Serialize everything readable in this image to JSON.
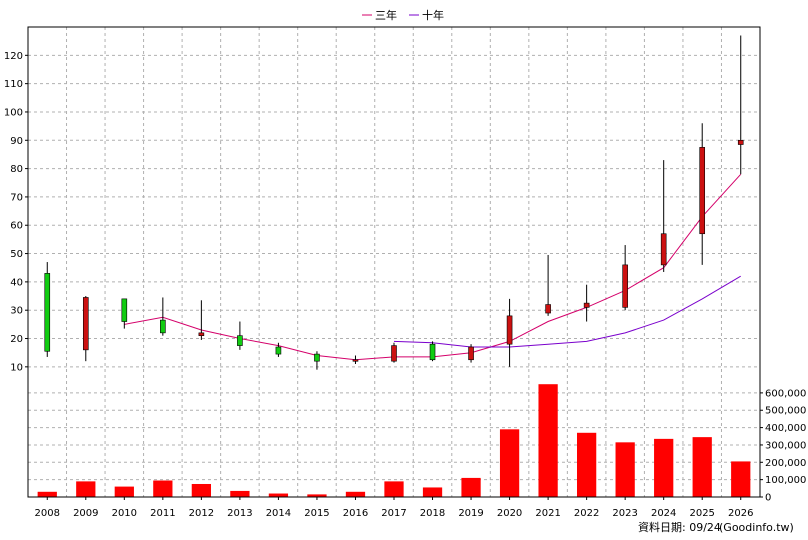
{
  "chart_data": {
    "type": "candlestick-with-volume",
    "legend": {
      "placement": "top-center",
      "items": [
        {
          "label": "三年",
          "color": "#d4006a"
        },
        {
          "label": "十年",
          "color": "#7a00cc"
        }
      ]
    },
    "categories": [
      "2008",
      "2009",
      "2010",
      "2011",
      "2012",
      "2013",
      "2014",
      "2015",
      "2016",
      "2017",
      "2018",
      "2019",
      "2020",
      "2021",
      "2022",
      "2023",
      "2024",
      "2025",
      "2026"
    ],
    "price": {
      "ylim": [
        5,
        130
      ],
      "ticks": [
        10,
        20,
        30,
        40,
        50,
        60,
        70,
        80,
        90,
        100,
        110,
        120
      ],
      "candles": [
        {
          "open": 43,
          "close": 15.5,
          "high": 47,
          "low": 13.5
        },
        {
          "open": 16,
          "close": 34.5,
          "high": 35,
          "low": 12
        },
        {
          "open": 34,
          "close": 26,
          "high": 34,
          "low": 23.5
        },
        {
          "open": 26.5,
          "close": 22,
          "high": 34.5,
          "low": 21
        },
        {
          "open": 21,
          "close": 22,
          "high": 33.5,
          "low": 19.5
        },
        {
          "open": 21,
          "close": 17.5,
          "high": 26,
          "low": 16
        },
        {
          "open": 17,
          "close": 14.5,
          "high": 18.5,
          "low": 13.5
        },
        {
          "open": 14.5,
          "close": 12,
          "high": 15.5,
          "low": 9
        },
        {
          "open": 12,
          "close": 12.5,
          "high": 14,
          "low": 11
        },
        {
          "open": 12,
          "close": 17.5,
          "high": 18.5,
          "low": 11.5
        },
        {
          "open": 18,
          "close": 12.5,
          "high": 19,
          "low": 12
        },
        {
          "open": 12.5,
          "close": 17,
          "high": 18,
          "low": 11.5
        },
        {
          "open": 18,
          "close": 28,
          "high": 34,
          "low": 10
        },
        {
          "open": 29,
          "close": 32,
          "high": 49.5,
          "low": 28
        },
        {
          "open": 31,
          "close": 32.5,
          "high": 39,
          "low": 26
        },
        {
          "open": 31,
          "close": 46,
          "high": 53,
          "low": 30
        },
        {
          "open": 46,
          "close": 57,
          "high": 83,
          "low": 43.5
        },
        {
          "open": 57,
          "close": 87.5,
          "high": 96,
          "low": 46
        },
        {
          "open": 88.5,
          "close": 90,
          "high": 127,
          "low": 78
        }
      ],
      "series": [
        {
          "name": "三年",
          "color": "#d4006a",
          "values": [
            null,
            null,
            25,
            27.5,
            23,
            20,
            17.5,
            14,
            12.5,
            13.5,
            13.5,
            15,
            19,
            26,
            31,
            37,
            45,
            63,
            78
          ]
        },
        {
          "name": "十年",
          "color": "#7a00cc",
          "values": [
            null,
            null,
            null,
            null,
            null,
            null,
            null,
            null,
            null,
            19,
            18.5,
            17,
            17,
            18,
            19,
            22,
            26.5,
            34,
            42
          ]
        }
      ],
      "bull_color": "#cc1111",
      "bear_color": "#11cc11"
    },
    "volume": {
      "ylim": [
        0,
        680000
      ],
      "ticks": [
        0,
        100000,
        200000,
        300000,
        400000,
        500000,
        600000
      ],
      "tick_labels": [
        "0",
        "100,000",
        "200,000",
        "300,000",
        "400,000",
        "500,000",
        "600,000"
      ],
      "values": [
        30000,
        90000,
        60000,
        95000,
        75000,
        35000,
        20000,
        15000,
        30000,
        90000,
        55000,
        110000,
        390000,
        650000,
        370000,
        315000,
        335000,
        345000,
        205000
      ],
      "color": "#ff0000"
    },
    "grid": true
  },
  "footer": {
    "date_label": "資料日期: 09/24",
    "source_label": "(Goodinfo.tw)"
  }
}
